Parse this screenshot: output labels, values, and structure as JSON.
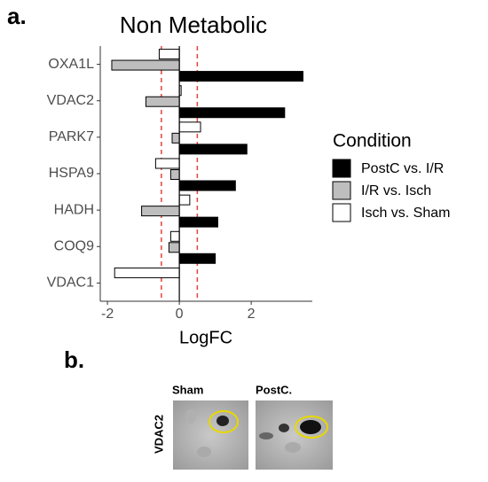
{
  "chart_data": {
    "type": "hbar",
    "title": "Non Metabolic",
    "xlabel": "LogFC",
    "categories": [
      "OXA1L",
      "VDAC2",
      "PARK7",
      "HSPA9",
      "HADH",
      "COQ9",
      "VDAC1"
    ],
    "series": [
      {
        "name": "PostC vs. I/R",
        "color": "#000000",
        "values": [
          3.44,
          2.93,
          1.88,
          1.56,
          1.07,
          1.0,
          0
        ]
      },
      {
        "name": "I/R vs. Isch",
        "color": "#bebebe",
        "values": [
          -1.88,
          -0.93,
          -0.2,
          -0.24,
          -1.05,
          -0.29,
          0
        ]
      },
      {
        "name": "Isch vs. Sham",
        "color": "#ffffff",
        "values": [
          -0.56,
          0.05,
          0.59,
          -0.66,
          0.29,
          -0.24,
          -1.8
        ]
      }
    ],
    "xlim": [
      -2.2,
      3.7
    ],
    "xticks": [
      -2,
      0,
      2
    ],
    "threshold_lines": [
      -0.5,
      0.5
    ],
    "threshold_color": "#e8413b",
    "legend_title": "Condition"
  },
  "panel_a_label": "a.",
  "panel_b": {
    "label": "b.",
    "row_label": "VDAC2",
    "columns": [
      "Sham",
      "PostC."
    ]
  }
}
